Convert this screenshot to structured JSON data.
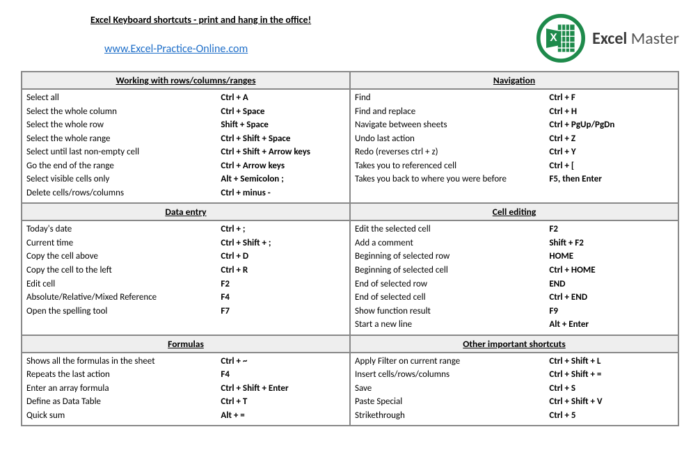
{
  "title": "Excel Keyboard shortcuts - print and hang in the office!",
  "url": "www.Excel-Practice-Online.com",
  "logo": {
    "text1": "Excel",
    "text2": "Master",
    "accent": "#1e8a4b"
  },
  "columns": [
    [
      {
        "header": "Working with rows/columns/ranges",
        "rows": [
          [
            "Select all",
            "Ctrl + A"
          ],
          [
            "Select the whole column",
            "Ctrl + Space"
          ],
          [
            "Select the whole row",
            "Shift + Space"
          ],
          [
            "Select the whole range",
            "Ctrl + Shift + Space"
          ],
          [
            "Select until last non-empty cell",
            "Ctrl + Shift + Arrow keys"
          ],
          [
            "Go the end of the range",
            "Ctrl + Arrow keys"
          ],
          [
            "Select visible cells only",
            "Alt + Semicolon ;"
          ],
          [
            "Delete cells/rows/columns",
            "Ctrl + minus -"
          ]
        ]
      },
      {
        "header": "Data entry",
        "rows": [
          [
            "Today's date",
            "Ctrl + ;"
          ],
          [
            "Current time",
            "Ctrl + Shift + ;"
          ],
          [
            "Copy the cell above",
            "Ctrl + D"
          ],
          [
            "Copy the cell to the left",
            "Ctrl + R"
          ],
          [
            "Edit cell",
            "F2"
          ],
          [
            "Absolute/Relative/Mixed Reference",
            "F4"
          ],
          [
            "Open the spelling tool",
            "F7"
          ]
        ]
      },
      {
        "header": "Formulas",
        "rows": [
          [
            "Shows all the formulas in the sheet",
            "Ctrl + ~"
          ],
          [
            "Repeats the last action",
            "F4"
          ],
          [
            "Enter an array formula",
            "Ctrl + Shift + Enter"
          ],
          [
            "Define as Data Table",
            "Ctrl + T"
          ],
          [
            "Quick sum",
            "Alt + ="
          ]
        ]
      }
    ],
    [
      {
        "header": "Navigation",
        "rows": [
          [
            "Find",
            "Ctrl + F"
          ],
          [
            "Find and replace",
            "Ctrl + H"
          ],
          [
            "Navigate between sheets",
            "Ctrl + PgUp/PgDn"
          ],
          [
            "Undo last action",
            "Ctrl + Z"
          ],
          [
            "Redo (reverses ctrl + z)",
            "Ctrl + Y"
          ],
          [
            "Takes you to referenced cell",
            "Ctrl + ["
          ],
          [
            "Takes you back to where you were before",
            "F5, then Enter"
          ]
        ]
      },
      {
        "header": "Cell editing",
        "rows": [
          [
            "Edit the selected cell",
            "F2"
          ],
          [
            "Add a comment",
            "Shift + F2"
          ],
          [
            "Beginning of selected row",
            "HOME"
          ],
          [
            "Beginning of selected cell",
            "Ctrl + HOME"
          ],
          [
            "End of selected row",
            "END"
          ],
          [
            "End of selected cell",
            "Ctrl + END"
          ],
          [
            "Show function result",
            "F9"
          ],
          [
            "Start a new line",
            "Alt + Enter"
          ]
        ]
      },
      {
        "header": "Other important shortcuts",
        "rows": [
          [
            "Apply Filter on current range",
            "Ctrl + Shift + L"
          ],
          [
            "Insert cells/rows/columns",
            "Ctrl + Shift + ="
          ],
          [
            "Save",
            "Ctrl + S"
          ],
          [
            "Paste Special",
            "Ctrl + Shift + V"
          ],
          [
            "Strikethrough",
            "Ctrl + 5"
          ]
        ]
      }
    ]
  ]
}
